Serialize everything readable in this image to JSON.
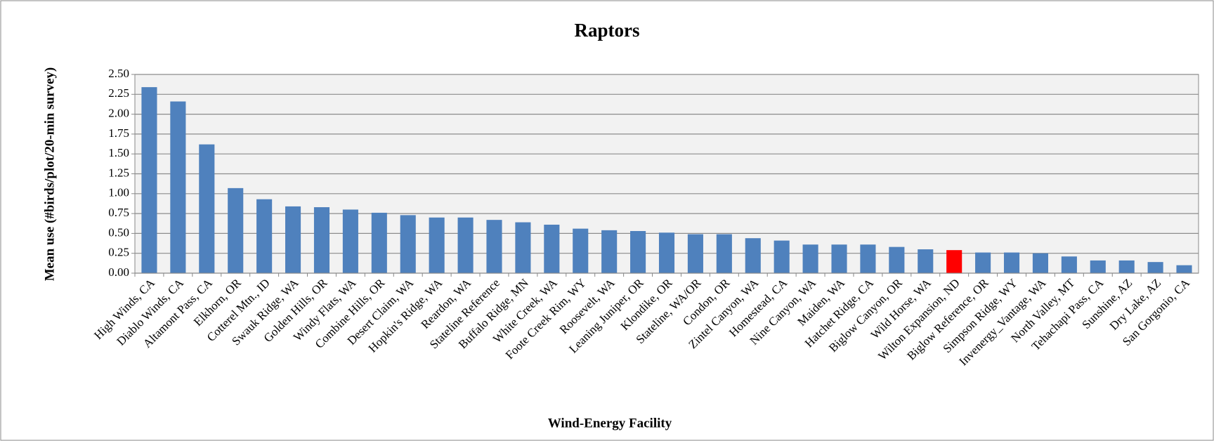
{
  "chart_data": {
    "type": "bar",
    "title": "Raptors",
    "x_label": "Wind-Energy Facility",
    "y_label": "Mean use (#birds/plot/20-min survey)",
    "categories": [
      "High Winds, CA",
      "Diablo Winds, CA",
      "Altamont Pass, CA",
      "Elkhorn, OR",
      "Cotterel Mtn., ID",
      "Swauk Ridge, WA",
      "Golden Hills, OR",
      "Windy Flats, WA",
      "Combine Hills, OR",
      "Desert Claim, WA",
      "Hopkin's Ridge, WA",
      "Reardon, WA",
      "Stateline Reference",
      "Buffalo Ridge, MN",
      "White Creek, WA",
      "Foote Creek Rim, WY",
      "Roosevelt, WA",
      "Leaning Juniper, OR",
      "Klondike, OR",
      "Stateline, WA/OR",
      "Condon, OR",
      "Zintel Canyon, WA",
      "Homestead, CA",
      "Nine Canyon, WA",
      "Maiden, WA",
      "Hatchet Ridge, CA",
      "Biglow Canyon, OR",
      "Wild Horse, WA",
      "Wilton Expansion, ND",
      "Biglow Reference, OR",
      "Simpson Ridge, WY",
      "Invenergy_Vantage, WA",
      "North Valley, MT",
      "Tehachapi Pass, CA",
      "Sunshine, AZ",
      "Dry Lake, AZ",
      "San Gorgonio, CA"
    ],
    "values": [
      2.34,
      2.16,
      1.62,
      1.07,
      0.93,
      0.84,
      0.83,
      0.8,
      0.76,
      0.73,
      0.7,
      0.7,
      0.67,
      0.64,
      0.61,
      0.56,
      0.54,
      0.53,
      0.51,
      0.49,
      0.49,
      0.44,
      0.41,
      0.36,
      0.36,
      0.36,
      0.33,
      0.3,
      0.29,
      0.26,
      0.26,
      0.25,
      0.21,
      0.16,
      0.16,
      0.14,
      0.1
    ],
    "colors": [
      "#4f81bd",
      "#4f81bd",
      "#4f81bd",
      "#4f81bd",
      "#4f81bd",
      "#4f81bd",
      "#4f81bd",
      "#4f81bd",
      "#4f81bd",
      "#4f81bd",
      "#4f81bd",
      "#4f81bd",
      "#4f81bd",
      "#4f81bd",
      "#4f81bd",
      "#4f81bd",
      "#4f81bd",
      "#4f81bd",
      "#4f81bd",
      "#4f81bd",
      "#4f81bd",
      "#4f81bd",
      "#4f81bd",
      "#4f81bd",
      "#4f81bd",
      "#4f81bd",
      "#4f81bd",
      "#4f81bd",
      "#ff0000",
      "#4f81bd",
      "#4f81bd",
      "#4f81bd",
      "#4f81bd",
      "#4f81bd",
      "#4f81bd",
      "#4f81bd",
      "#4f81bd"
    ],
    "ylim": [
      0,
      2.5
    ],
    "yticks": [
      {
        "value": 0,
        "label": "0.00"
      },
      {
        "value": 0.25,
        "label": "0.25"
      },
      {
        "value": 0.5,
        "label": "0.50"
      },
      {
        "value": 0.75,
        "label": "0.75"
      },
      {
        "value": 1,
        "label": "1.00"
      },
      {
        "value": 1.25,
        "label": "1.25"
      },
      {
        "value": 1.5,
        "label": "1.50"
      },
      {
        "value": 1.75,
        "label": "1.75"
      },
      {
        "value": 2,
        "label": "2.00"
      },
      {
        "value": 2.25,
        "label": "2.25"
      },
      {
        "value": 2.5,
        "label": "2.50"
      }
    ],
    "grid": true
  }
}
